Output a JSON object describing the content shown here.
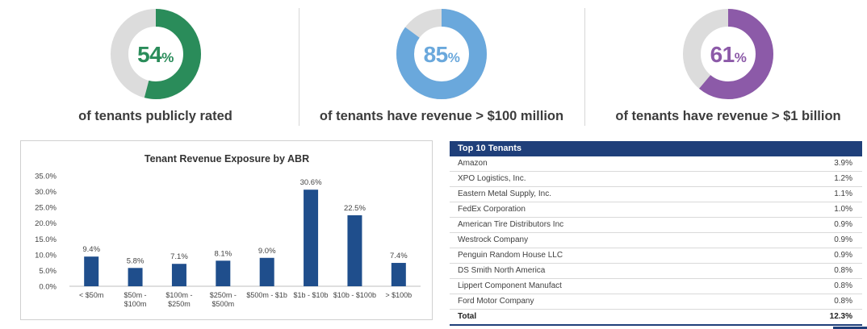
{
  "kpis": [
    {
      "value": 54,
      "symbol": "%",
      "caption": "of tenants publicly rated",
      "color": "#2a8c5a"
    },
    {
      "value": 85,
      "symbol": "%",
      "caption": "of tenants have revenue > $100 million",
      "color": "#6aa8dc"
    },
    {
      "value": 61,
      "symbol": "%",
      "caption": "of tenants have revenue > $1 billion",
      "color": "#8c5aa8"
    }
  ],
  "donut_track_color": "#dcdcdc",
  "chart_data": {
    "type": "bar",
    "title": "Tenant Revenue Exposure by ABR",
    "categories": [
      [
        "< $50m"
      ],
      [
        "$50m -",
        "$100m"
      ],
      [
        "$100m -",
        "$250m"
      ],
      [
        "$250m -",
        "$500m"
      ],
      [
        "$500m - $1b"
      ],
      [
        "$1b - $10b"
      ],
      [
        "$10b - $100b"
      ],
      [
        "> $100b"
      ]
    ],
    "values": [
      9.4,
      5.8,
      7.1,
      8.1,
      9.0,
      30.6,
      22.5,
      7.4
    ],
    "value_labels": [
      "9.4%",
      "5.8%",
      "7.1%",
      "8.1%",
      "9.0%",
      "30.6%",
      "22.5%",
      "7.4%"
    ],
    "ylim": [
      0,
      35
    ],
    "yticks": [
      0,
      5,
      10,
      15,
      20,
      25,
      30,
      35
    ],
    "ytick_labels": [
      "0.0%",
      "5.0%",
      "10.0%",
      "15.0%",
      "20.0%",
      "25.0%",
      "30.0%",
      "35.0%"
    ],
    "bar_color": "#1f4e8c",
    "grid": false
  },
  "top_tenants": {
    "header": "Top 10 Tenants",
    "rows": [
      {
        "name": "Amazon",
        "value": "3.9%"
      },
      {
        "name": "XPO Logistics, Inc.",
        "value": "1.2%"
      },
      {
        "name": "Eastern Metal Supply, Inc.",
        "value": "1.1%"
      },
      {
        "name": "FedEx Corporation",
        "value": "1.0%"
      },
      {
        "name": "American Tire Distributors Inc",
        "value": "0.9%"
      },
      {
        "name": "Westrock Company",
        "value": "0.9%"
      },
      {
        "name": "Penguin Random House LLC",
        "value": "0.9%"
      },
      {
        "name": "DS Smith North America",
        "value": "0.8%"
      },
      {
        "name": "Lippert Component Manufact",
        "value": "0.8%"
      },
      {
        "name": "Ford Motor Company",
        "value": "0.8%"
      }
    ],
    "total": {
      "name": "Total",
      "value": "12.3%"
    }
  }
}
